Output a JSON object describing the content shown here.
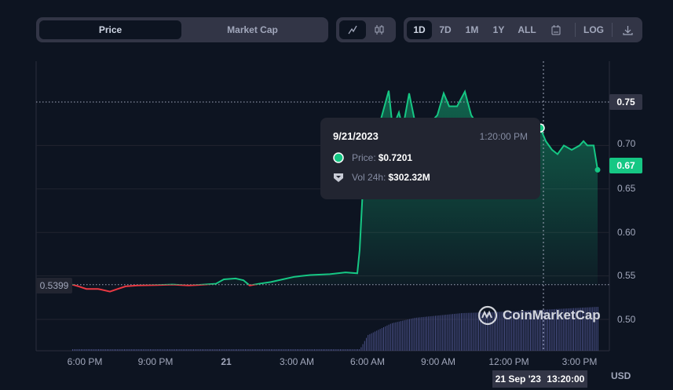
{
  "toolbar": {
    "metric_tabs": [
      {
        "label": "Price",
        "active": true
      },
      {
        "label": "Market Cap",
        "active": false
      }
    ],
    "chart_types": [
      {
        "icon": "line-chart-icon",
        "active": true
      },
      {
        "icon": "candlestick-icon",
        "active": false
      }
    ],
    "ranges": [
      {
        "label": "1D",
        "active": true
      },
      {
        "label": "7D"
      },
      {
        "label": "1M"
      },
      {
        "label": "1Y"
      },
      {
        "label": "ALL"
      }
    ],
    "calendar_icon": "calendar-icon",
    "log_label": "LOG",
    "download_icon": "download-icon"
  },
  "colors": {
    "up": "#16c784",
    "down": "#ea3943",
    "background": "#0d1421",
    "panel": "#323546",
    "volume": "#4a5188"
  },
  "tooltip": {
    "date": "9/21/2023",
    "time": "1:20:00 PM",
    "price_label": "Price:",
    "price_value": "$0.7201",
    "vol_label": "Vol 24h:",
    "vol_value": "$302.32M"
  },
  "crosshair_label": {
    "date": "21 Sep '23",
    "time": "13:20:00"
  },
  "watermark": "CoinMarketCap",
  "currency": "USD",
  "chart_data": {
    "type": "line",
    "y_ticks": [
      "0.75",
      "0.70",
      "0.65",
      "0.60",
      "0.55",
      "0.50"
    ],
    "x_ticks": [
      "6:00 PM",
      "9:00 PM",
      "21",
      "3:00 AM",
      "6:00 AM",
      "9:00 AM",
      "12:00 PM",
      "3:00 PM"
    ],
    "baseline": "0.5399",
    "current_price": "0.67",
    "highlight_price": "0.75",
    "grid": true,
    "price": [
      [
        "2023-09-20 17:28",
        0.54
      ],
      [
        "2023-09-20 17:44",
        0.538
      ],
      [
        "2023-09-20 18:04",
        0.535
      ],
      [
        "2023-09-20 18:34",
        0.535
      ],
      [
        "2023-09-20 19:04",
        0.532
      ],
      [
        "2023-09-20 19:24",
        0.535
      ],
      [
        "2023-09-20 19:44",
        0.538
      ],
      [
        "2023-09-20 20:14",
        0.539
      ],
      [
        "2023-09-20 21:04",
        0.5395
      ],
      [
        "2023-09-20 21:44",
        0.54
      ],
      [
        "2023-09-20 22:24",
        0.539
      ],
      [
        "2023-09-20 23:04",
        0.54
      ],
      [
        "2023-09-20 23:34",
        0.541
      ],
      [
        "2023-09-20 23:54",
        0.546
      ],
      [
        "2023-09-21 00:24",
        0.547
      ],
      [
        "2023-09-21 00:44",
        0.545
      ],
      [
        "2023-09-21 01:00",
        0.539
      ],
      [
        "2023-09-21 01:24",
        0.541
      ],
      [
        "2023-09-21 01:54",
        0.543
      ],
      [
        "2023-09-21 02:24",
        0.546
      ],
      [
        "2023-09-21 02:54",
        0.549
      ],
      [
        "2023-09-21 03:34",
        0.551
      ],
      [
        "2023-09-21 04:24",
        0.552
      ],
      [
        "2023-09-21 05:04",
        0.554
      ],
      [
        "2023-09-21 05:34",
        0.553
      ],
      [
        "2023-09-21 05:40",
        0.58
      ],
      [
        "2023-09-21 05:48",
        0.65
      ],
      [
        "2023-09-21 06:04",
        0.7
      ],
      [
        "2023-09-21 06:34",
        0.73
      ],
      [
        "2023-09-21 06:54",
        0.763
      ],
      [
        "2023-09-21 07:04",
        0.72
      ],
      [
        "2023-09-21 07:20",
        0.738
      ],
      [
        "2023-09-21 07:30",
        0.72
      ],
      [
        "2023-09-21 07:46",
        0.76
      ],
      [
        "2023-09-21 08:04",
        0.72
      ],
      [
        "2023-09-21 08:18",
        0.715
      ],
      [
        "2023-09-21 08:58",
        0.735
      ],
      [
        "2023-09-21 09:14",
        0.76
      ],
      [
        "2023-09-21 09:28",
        0.745
      ],
      [
        "2023-09-21 09:48",
        0.745
      ],
      [
        "2023-09-21 10:08",
        0.762
      ],
      [
        "2023-09-21 10:24",
        0.735
      ],
      [
        "2023-09-21 10:38",
        0.725
      ],
      [
        "2023-09-21 11:24",
        0.725
      ],
      [
        "2023-09-21 12:24",
        0.72
      ],
      [
        "2023-09-21 13:20",
        0.7201
      ],
      [
        "2023-09-21 13:34",
        0.705
      ],
      [
        "2023-09-21 13:50",
        0.695
      ],
      [
        "2023-09-21 14:04",
        0.69
      ],
      [
        "2023-09-21 14:20",
        0.7
      ],
      [
        "2023-09-21 14:40",
        0.695
      ],
      [
        "2023-09-21 15:00",
        0.7
      ],
      [
        "2023-09-21 15:10",
        0.705
      ],
      [
        "2023-09-21 15:20",
        0.7
      ],
      [
        "2023-09-21 15:36",
        0.7
      ],
      [
        "2023-09-21 15:46",
        0.672
      ]
    ],
    "volume_relative": [
      [
        "2023-09-20 17:28",
        2
      ],
      [
        "2023-09-21 05:40",
        2
      ],
      [
        "2023-09-21 06:00",
        20
      ],
      [
        "2023-09-21 07:00",
        35
      ],
      [
        "2023-09-21 08:00",
        42
      ],
      [
        "2023-09-21 10:00",
        48
      ],
      [
        "2023-09-21 12:00",
        50
      ],
      [
        "2023-09-21 15:46",
        56
      ]
    ]
  }
}
